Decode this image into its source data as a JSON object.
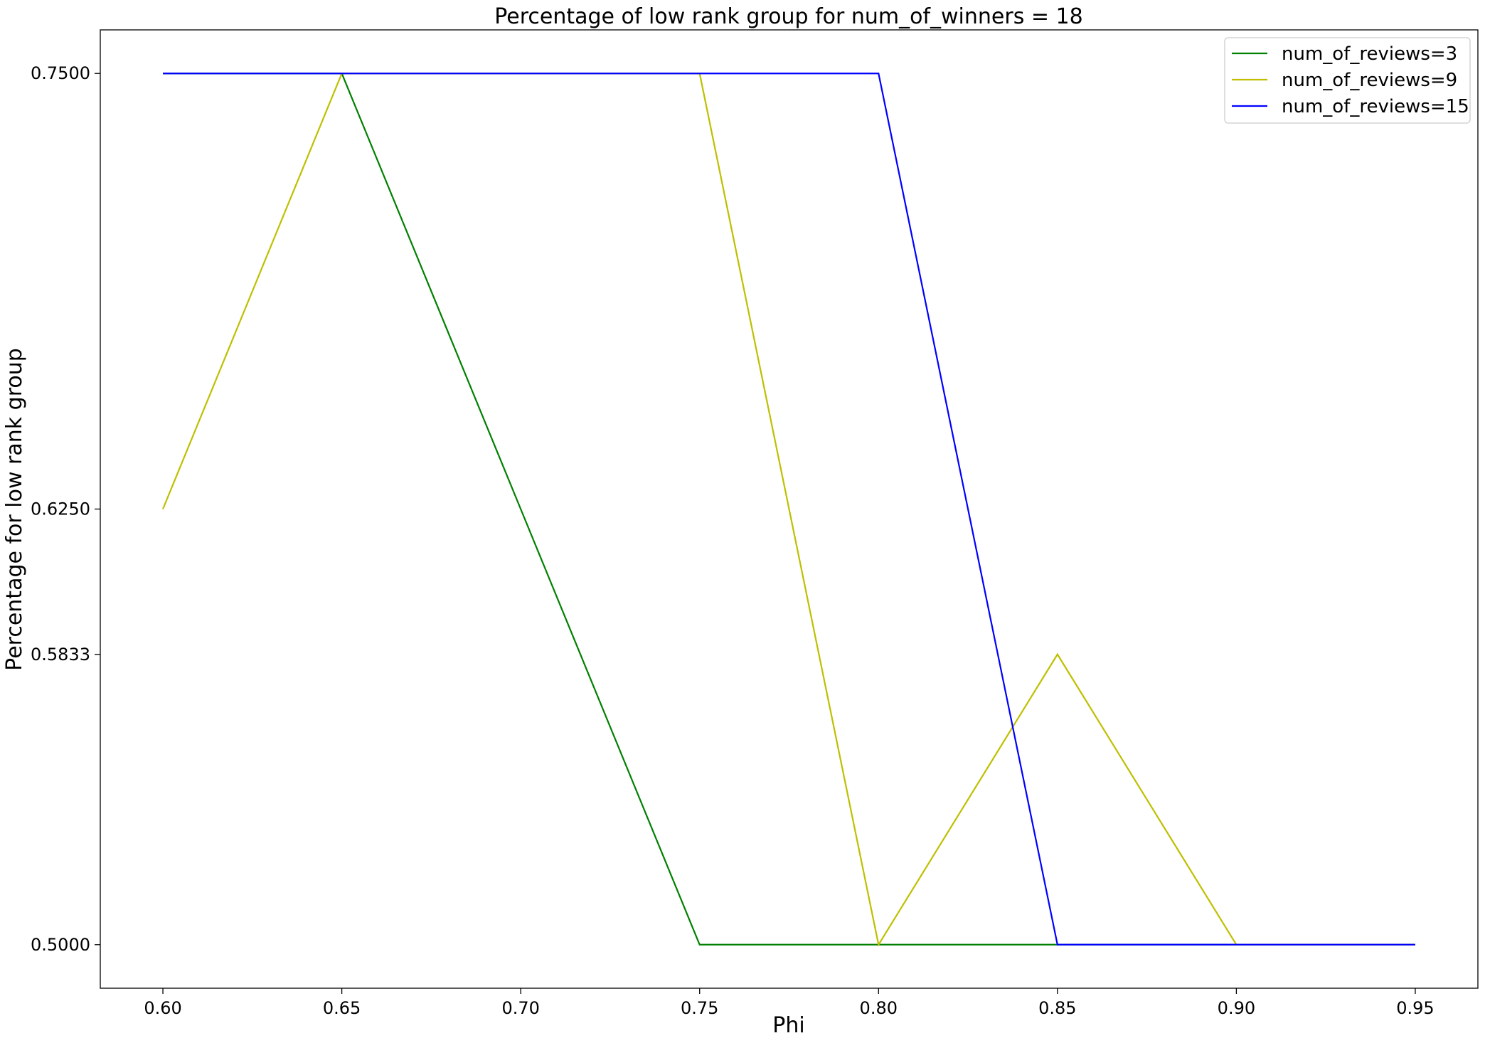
{
  "chart_data": {
    "type": "line",
    "title": "Percentage of low rank group for num_of_winners = 18",
    "xlabel": "Phi",
    "ylabel": "Percentage for low rank group",
    "x": [
      0.6,
      0.65,
      0.7,
      0.75,
      0.8,
      0.85,
      0.9,
      0.95
    ],
    "x_ticks": [
      "0.60",
      "0.65",
      "0.70",
      "0.75",
      "0.80",
      "0.85",
      "0.90",
      "0.95"
    ],
    "y_ticks": [
      {
        "value": 0.75,
        "label": "0.7500"
      },
      {
        "value": 0.625,
        "label": "0.6250"
      },
      {
        "value": 0.5833,
        "label": "0.5833"
      },
      {
        "value": 0.5,
        "label": "0.5000"
      }
    ],
    "xlim": [
      0.5825,
      0.9675
    ],
    "ylim": [
      0.4875,
      0.7625
    ],
    "grid": false,
    "legend_position": "top-right",
    "series": [
      {
        "name": "num_of_reviews=3",
        "color": "#008000",
        "values": [
          0.75,
          0.75,
          0.625,
          0.5,
          0.5,
          0.5,
          0.5,
          0.5
        ]
      },
      {
        "name": "num_of_reviews=9",
        "color": "#bfbf00",
        "values": [
          0.625,
          0.75,
          0.75,
          0.75,
          0.5,
          0.5833,
          0.5,
          0.5
        ]
      },
      {
        "name": "num_of_reviews=15",
        "color": "#0000ff",
        "values": [
          0.75,
          0.75,
          0.75,
          0.75,
          0.75,
          0.5,
          0.5,
          0.5
        ]
      }
    ]
  }
}
